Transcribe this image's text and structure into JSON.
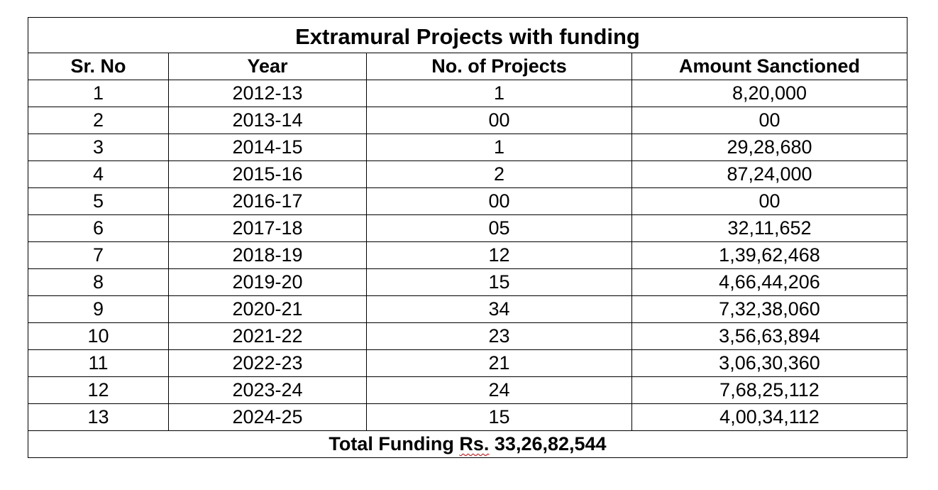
{
  "table": {
    "title": "Extramural Projects with funding",
    "headers": {
      "sr_no": "Sr. No",
      "year": "Year",
      "projects": "No. of Projects",
      "amount": "Amount Sanctioned"
    },
    "rows": [
      {
        "sr": "1",
        "year": "2012-13",
        "projects": "1",
        "amount": "8,20,000"
      },
      {
        "sr": "2",
        "year": "2013-14",
        "projects": "00",
        "amount": "00"
      },
      {
        "sr": "3",
        "year": "2014-15",
        "projects": "1",
        "amount": "29,28,680"
      },
      {
        "sr": "4",
        "year": "2015-16",
        "projects": "2",
        "amount": "87,24,000"
      },
      {
        "sr": "5",
        "year": "2016-17",
        "projects": "00",
        "amount": "00"
      },
      {
        "sr": "6",
        "year": "2017-18",
        "projects": "05",
        "amount": "32,11,652"
      },
      {
        "sr": "7",
        "year": "2018-19",
        "projects": "12",
        "amount": "1,39,62,468"
      },
      {
        "sr": "8",
        "year": "2019-20",
        "projects": "15",
        "amount": "4,66,44,206"
      },
      {
        "sr": "9",
        "year": "2020-21",
        "projects": "34",
        "amount": "7,32,38,060"
      },
      {
        "sr": "10",
        "year": "2021-22",
        "projects": "23",
        "amount": "3,56,63,894"
      },
      {
        "sr": "11",
        "year": "2022-23",
        "projects": "21",
        "amount": "3,06,30,360"
      },
      {
        "sr": "12",
        "year": "2023-24",
        "projects": "24",
        "amount": "7,68,25,112"
      },
      {
        "sr": "13",
        "year": "2024-25",
        "projects": "15",
        "amount": "4,00,34,112"
      }
    ],
    "total": {
      "prefix": "Total Funding ",
      "currency": "Rs.",
      "amount": " 33,26,82,544"
    }
  }
}
